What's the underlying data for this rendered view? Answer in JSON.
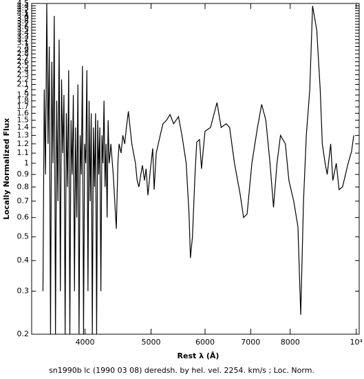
{
  "chart_data": {
    "type": "line",
    "x_label": "Rest λ (Å)",
    "y_label": "Locally Normalized Flux",
    "caption": "sn1990b lc (1990 03 08) deredsh. by hel. vel.  2254. km/s ;  Loc. Norm.",
    "x_scale": "log",
    "y_scale": "log",
    "xlim": [
      3340,
      10100
    ],
    "ylim": [
      0.2,
      4.5
    ],
    "xticks": [
      4000,
      5000,
      6000,
      7000,
      8000,
      {
        "value": 10000,
        "label": "10⁴"
      }
    ],
    "yticks": [
      0.2,
      0.3,
      0.4,
      0.5,
      0.6,
      0.7,
      0.8,
      0.9,
      1,
      1.1,
      1.2,
      1.3,
      1.4,
      1.5,
      1.6,
      1.7,
      1.8,
      1.9,
      2,
      2.1,
      2.2,
      2.3,
      2.4,
      2.5,
      2.6,
      2.7,
      2.8,
      2.9,
      3,
      3.1,
      3.2,
      3.3,
      3.4,
      3.5,
      3.6,
      3.7,
      3.8,
      3.9,
      4,
      4.1,
      4.2,
      4.3,
      4.4,
      4.5
    ],
    "series": [
      {
        "color": "#000000",
        "x": [
          3470,
          3485,
          3500,
          3515,
          3530,
          3545,
          3560,
          3575,
          3590,
          3605,
          3620,
          3635,
          3650,
          3665,
          3680,
          3695,
          3710,
          3725,
          3740,
          3755,
          3770,
          3785,
          3800,
          3815,
          3830,
          3845,
          3860,
          3875,
          3890,
          3905,
          3920,
          3935,
          3950,
          3965,
          3980,
          3995,
          4010,
          4025,
          4040,
          4055,
          4070,
          4085,
          4100,
          4115,
          4130,
          4145,
          4160,
          4175,
          4190,
          4205,
          4220,
          4235,
          4250,
          4265,
          4280,
          4295,
          4310,
          4325,
          4340,
          4355,
          4365,
          4400,
          4446,
          4470,
          4488,
          4518,
          4545,
          4574,
          4600,
          4631,
          4685,
          4743,
          4770,
          4799,
          4830,
          4856,
          4890,
          4916,
          4947,
          4990,
          5028,
          5052,
          5088,
          5157,
          5205,
          5268,
          5332,
          5396,
          5485,
          5550,
          5630,
          5684,
          5711,
          5750,
          5800,
          5834,
          5889,
          5929,
          5999,
          6112,
          6247,
          6336,
          6443,
          6519,
          6627,
          6754,
          6834,
          6916,
          7029,
          7163,
          7265,
          7368,
          7473,
          7562,
          7651,
          7742,
          7871,
          7965,
          8096,
          8212,
          8290,
          8368,
          8448,
          8547,
          8629,
          8751,
          8854,
          8917,
          9002,
          9066,
          9173,
          9239,
          9348,
          9437,
          9548,
          9730,
          9845,
          9915
        ],
        "values": [
          0.3,
          2.0,
          0.9,
          4.5,
          1.2,
          3.0,
          0.2,
          2.6,
          1.0,
          4.0,
          0.2,
          1.8,
          0.7,
          3.2,
          0.3,
          2.2,
          1.1,
          1.9,
          0.2,
          1.6,
          0.8,
          2.4,
          0.2,
          1.5,
          0.9,
          1.9,
          0.3,
          1.4,
          0.6,
          2.1,
          0.2,
          1.3,
          0.9,
          2.5,
          0.2,
          1.2,
          1.0,
          2.4,
          0.3,
          1.8,
          0.7,
          1.6,
          0.2,
          1.4,
          0.8,
          1.6,
          0.2,
          1.5,
          0.9,
          1.4,
          0.3,
          1.3,
          1.0,
          1.8,
          0.8,
          1.2,
          0.6,
          1.5,
          1.0,
          1.1,
          1.2,
          0.9,
          0.54,
          1.0,
          1.2,
          1.1,
          1.3,
          1.2,
          1.4,
          1.63,
          1.2,
          1.0,
          0.85,
          0.8,
          0.9,
          0.98,
          0.85,
          0.95,
          0.74,
          0.95,
          1.15,
          0.78,
          1.1,
          1.3,
          1.45,
          1.5,
          1.58,
          1.45,
          1.55,
          1.3,
          1.0,
          0.62,
          0.41,
          0.5,
          0.9,
          1.22,
          1.25,
          0.95,
          1.35,
          1.4,
          1.77,
          1.4,
          1.45,
          1.4,
          1.0,
          0.75,
          0.6,
          0.62,
          1.0,
          1.4,
          1.74,
          1.5,
          1.0,
          0.66,
          1.0,
          1.3,
          1.2,
          0.85,
          0.7,
          0.55,
          0.24,
          0.7,
          1.3,
          2.0,
          4.4,
          3.5,
          2.0,
          1.2,
          1.0,
          0.9,
          1.2,
          0.85,
          1.0,
          0.78,
          0.8,
          1.0,
          1.12,
          1.3
        ]
      }
    ]
  }
}
